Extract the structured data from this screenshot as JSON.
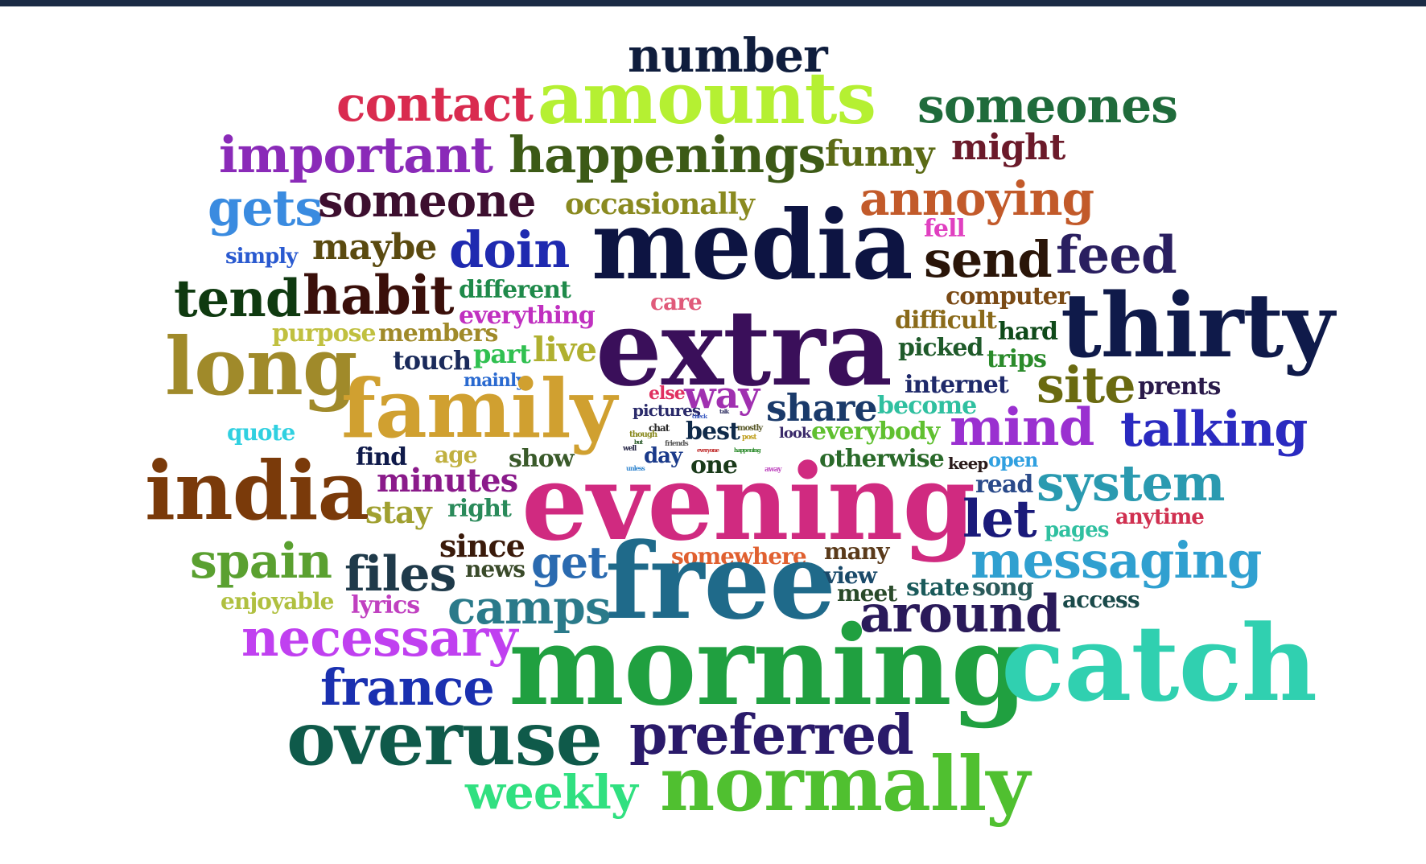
{
  "word_cloud": {
    "words": [
      {
        "text": "number",
        "color": "#0f1d3d"
      },
      {
        "text": "contact",
        "color": "#d92b4f"
      },
      {
        "text": "amounts",
        "color": "#b5f032"
      },
      {
        "text": "someones",
        "color": "#1f6b3b"
      },
      {
        "text": "important",
        "color": "#8a2ab8"
      },
      {
        "text": "happenings",
        "color": "#3c5a16"
      },
      {
        "text": "funny",
        "color": "#5c6b16"
      },
      {
        "text": "might",
        "color": "#6b1a2a"
      },
      {
        "text": "gets",
        "color": "#3a8be0"
      },
      {
        "text": "someone",
        "color": "#3d0f2f"
      },
      {
        "text": "occasionally",
        "color": "#8a8a20"
      },
      {
        "text": "annoying",
        "color": "#c25a2a"
      },
      {
        "text": "media",
        "color": "#0d1442"
      },
      {
        "text": "fell",
        "color": "#e040c0"
      },
      {
        "text": "simply",
        "color": "#2a5ad0"
      },
      {
        "text": "maybe",
        "color": "#5a4a10"
      },
      {
        "text": "doin",
        "color": "#1f2ab0"
      },
      {
        "text": "send",
        "color": "#2a1508"
      },
      {
        "text": "feed",
        "color": "#2a1f60"
      },
      {
        "text": "tend",
        "color": "#0f3a10"
      },
      {
        "text": "habit",
        "color": "#3a0f0a"
      },
      {
        "text": "different",
        "color": "#1f8a4a"
      },
      {
        "text": "care",
        "color": "#e05a7a"
      },
      {
        "text": "computer",
        "color": "#7a4a15"
      },
      {
        "text": "thirty",
        "color": "#0f1a4a"
      },
      {
        "text": "everything",
        "color": "#c030c0"
      },
      {
        "text": "difficult",
        "color": "#8a6a1a"
      },
      {
        "text": "hard",
        "color": "#0f4a1a"
      },
      {
        "text": "purpose",
        "color": "#c0c040"
      },
      {
        "text": "members",
        "color": "#a08a2a"
      },
      {
        "text": "extra",
        "color": "#3a0f5a"
      },
      {
        "text": "picked",
        "color": "#1f5a2a"
      },
      {
        "text": "trips",
        "color": "#2a8a2a"
      },
      {
        "text": "long",
        "color": "#a08a2a"
      },
      {
        "text": "touch",
        "color": "#1a2a5a"
      },
      {
        "text": "part",
        "color": "#30c050"
      },
      {
        "text": "live",
        "color": "#b0b030"
      },
      {
        "text": "mainly",
        "color": "#2a6ad0"
      },
      {
        "text": "site",
        "color": "#6a6a10"
      },
      {
        "text": "internet",
        "color": "#1f2a6a"
      },
      {
        "text": "prents",
        "color": "#2a1a4a"
      },
      {
        "text": "family",
        "color": "#d0a030"
      },
      {
        "text": "else",
        "color": "#e03060"
      },
      {
        "text": "way",
        "color": "#a030b0"
      },
      {
        "text": "share",
        "color": "#1a3a6a"
      },
      {
        "text": "become",
        "color": "#30c0a0"
      },
      {
        "text": "pictures",
        "color": "#2a2a6a"
      },
      {
        "text": "mind",
        "color": "#9a30d0"
      },
      {
        "text": "talking",
        "color": "#2a2ac0"
      },
      {
        "text": "quote",
        "color": "#30d0e0"
      },
      {
        "text": "best",
        "color": "#0f2a4a"
      },
      {
        "text": "look",
        "color": "#3a2a6a"
      },
      {
        "text": "everybody",
        "color": "#60c030"
      },
      {
        "text": "india",
        "color": "#7a3a0a"
      },
      {
        "text": "find",
        "color": "#0f1a4a"
      },
      {
        "text": "age",
        "color": "#c0b040"
      },
      {
        "text": "show",
        "color": "#3a5a2a"
      },
      {
        "text": "day",
        "color": "#1a3a8a"
      },
      {
        "text": "one",
        "color": "#1a3a1a"
      },
      {
        "text": "otherwise",
        "color": "#2a6a2a"
      },
      {
        "text": "keep",
        "color": "#2a1a1a"
      },
      {
        "text": "open",
        "color": "#30a0e0"
      },
      {
        "text": "minutes",
        "color": "#8a1a8a"
      },
      {
        "text": "evening",
        "color": "#d02a80"
      },
      {
        "text": "read",
        "color": "#2a4a8a"
      },
      {
        "text": "system",
        "color": "#2a9ab0"
      },
      {
        "text": "stay",
        "color": "#a0a030"
      },
      {
        "text": "right",
        "color": "#2a8a5a"
      },
      {
        "text": "let",
        "color": "#1a1a7a"
      },
      {
        "text": "pages",
        "color": "#30c0a0"
      },
      {
        "text": "anytime",
        "color": "#d03050"
      },
      {
        "text": "spain",
        "color": "#5aa030"
      },
      {
        "text": "files",
        "color": "#1f3a4a"
      },
      {
        "text": "since",
        "color": "#3a1a0a"
      },
      {
        "text": "get",
        "color": "#2a6ab0"
      },
      {
        "text": "somewhere",
        "color": "#e06030"
      },
      {
        "text": "many",
        "color": "#5a3a1a"
      },
      {
        "text": "messaging",
        "color": "#30a0d0"
      },
      {
        "text": "news",
        "color": "#3a4a2a"
      },
      {
        "text": "free",
        "color": "#1f6a8a"
      },
      {
        "text": "view",
        "color": "#1a4a6a"
      },
      {
        "text": "state",
        "color": "#1a5a5a"
      },
      {
        "text": "song",
        "color": "#2a5a5a"
      },
      {
        "text": "enjoyable",
        "color": "#b0c040"
      },
      {
        "text": "lyrics",
        "color": "#c040c0"
      },
      {
        "text": "camps",
        "color": "#2a7a8a"
      },
      {
        "text": "meet",
        "color": "#2a4a2a"
      },
      {
        "text": "access",
        "color": "#1a4a4a"
      },
      {
        "text": "around",
        "color": "#2a1a5a"
      },
      {
        "text": "necessary",
        "color": "#c040f0"
      },
      {
        "text": "france",
        "color": "#1a30b0"
      },
      {
        "text": "morning",
        "color": "#20a040"
      },
      {
        "text": "catch",
        "color": "#30d0b0"
      },
      {
        "text": "overuse",
        "color": "#0f5a4a"
      },
      {
        "text": "preferred",
        "color": "#2a1a6a"
      },
      {
        "text": "weekly",
        "color": "#30e080"
      },
      {
        "text": "normally",
        "color": "#50c030"
      },
      {
        "text": "chat",
        "color": "#2a2a2a"
      },
      {
        "text": "though",
        "color": "#8a8a20"
      },
      {
        "text": "friends",
        "color": "#5a5a5a"
      },
      {
        "text": "mostly",
        "color": "#5a5a2a"
      },
      {
        "text": "post",
        "color": "#c0a020"
      },
      {
        "text": "check",
        "color": "#3a5ac0"
      },
      {
        "text": "talk",
        "color": "#3a3a6a"
      },
      {
        "text": "well",
        "color": "#2a2a4a"
      },
      {
        "text": "but",
        "color": "#2a5a2a"
      },
      {
        "text": "everyone",
        "color": "#c02a2a"
      },
      {
        "text": "happening",
        "color": "#2a8a2a"
      },
      {
        "text": "unless",
        "color": "#3a8ad0"
      },
      {
        "text": "away",
        "color": "#c04ac0"
      }
    ]
  }
}
